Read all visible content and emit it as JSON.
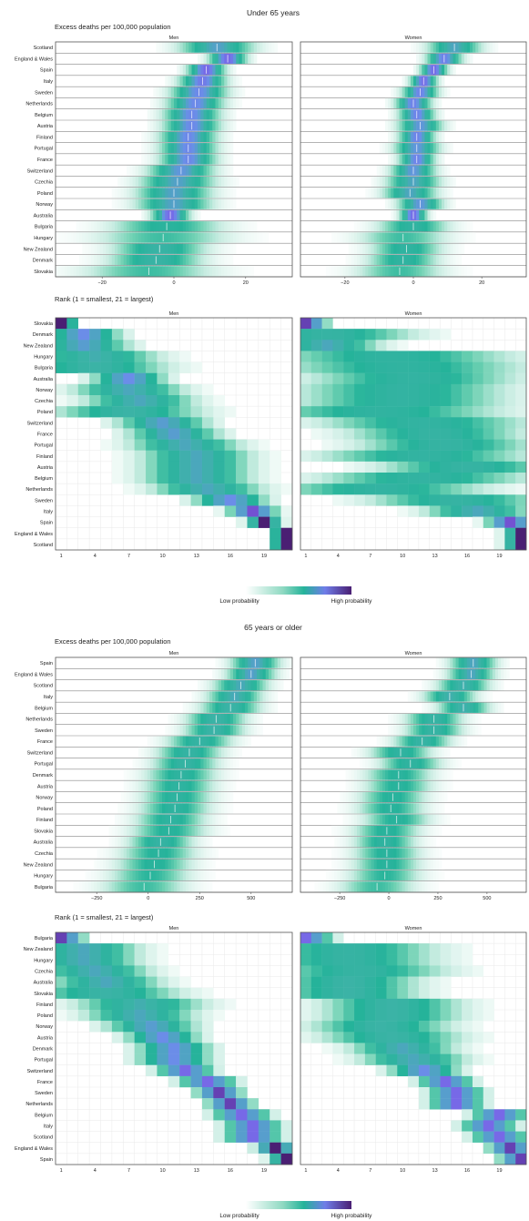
{
  "colors": {
    "gradient": [
      "#ffffff",
      "#c7ece1",
      "#6fd1b3",
      "#25b39a",
      "#3bb3a6",
      "#6a8fe8",
      "#7b5ce6",
      "#4a1f73"
    ],
    "panel_border": "#555555",
    "grid": "#e9e9e9"
  },
  "legend_labels": {
    "low": "Low probability",
    "high": "High probability"
  },
  "chart_data": [
    {
      "section_title": "Under 65 years",
      "type": "heatmap",
      "subtitle": "Excess deaths per 100,000 population",
      "facets": [
        "Men",
        "Women"
      ],
      "x_ticks": [
        -20,
        0,
        20
      ],
      "xlim": [
        -33,
        33
      ],
      "countries": [
        "Scotland",
        "England & Wales",
        "Spain",
        "Italy",
        "Sweden",
        "Netherlands",
        "Belgium",
        "Austria",
        "Finland",
        "Portugal",
        "France",
        "Switzerland",
        "Czechia",
        "Poland",
        "Norway",
        "Australia",
        "Bulgaria",
        "Hungary",
        "New Zealand",
        "Denmark",
        "Slovakia"
      ],
      "men_median": [
        12,
        15,
        9,
        8,
        7,
        6,
        5,
        5,
        4,
        4,
        4,
        2,
        1,
        0,
        0,
        -1,
        -2,
        -3,
        -4,
        -5,
        -7
      ],
      "men_spread": [
        4,
        2,
        2,
        2.5,
        3,
        3,
        3,
        3,
        3,
        3,
        3,
        3.5,
        4,
        4,
        4,
        2,
        6,
        7,
        5,
        5,
        7
      ],
      "women_median": [
        12,
        9,
        6,
        3,
        2,
        0,
        1,
        2,
        1,
        1,
        1,
        0,
        0,
        -1,
        2,
        0,
        0,
        -3,
        -2,
        -3,
        -4
      ],
      "women_spread": [
        3,
        2,
        1.5,
        1.5,
        2,
        2,
        2,
        2.5,
        2,
        2.5,
        2,
        2.5,
        3,
        3,
        2.5,
        1.5,
        4,
        5,
        4,
        4,
        5
      ],
      "rank_subtitle": "Rank (1 = smallest, 21 = largest)",
      "rank_ticks": [
        1,
        4,
        7,
        10,
        13,
        16,
        19
      ],
      "rank_countries": [
        "Slovakia",
        "Denmark",
        "New Zealand",
        "Hungary",
        "Bulgaria",
        "Australia",
        "Norway",
        "Czechia",
        "Poland",
        "Switzerland",
        "France",
        "Portugal",
        "Finland",
        "Austria",
        "Belgium",
        "Netherlands",
        "Sweden",
        "Italy",
        "Spain",
        "England & Wales",
        "Scotland"
      ],
      "men_rank_center": [
        1,
        3,
        3,
        4,
        4,
        7,
        7,
        8,
        7,
        10,
        11,
        12,
        13,
        13,
        13,
        14,
        16,
        18,
        19,
        21,
        21
      ],
      "men_rank_spread": [
        0.8,
        2,
        2.5,
        3.5,
        4,
        2,
        3,
        3,
        4,
        2.5,
        2.5,
        3,
        3,
        3,
        3,
        3,
        2,
        1.3,
        0.9,
        0.8,
        0.8
      ],
      "women_rank_center": [
        1,
        3,
        3,
        9,
        10,
        11,
        10,
        10,
        8,
        12,
        13,
        14,
        12,
        16,
        12,
        8,
        15,
        17,
        20,
        21,
        21
      ],
      "women_rank_spread": [
        1.2,
        5,
        3,
        7,
        7,
        6,
        6,
        6,
        7,
        6,
        5,
        5,
        6,
        5,
        6,
        6,
        5,
        3,
        1.3,
        0.9,
        0.9
      ]
    },
    {
      "section_title": "65 years or older",
      "type": "heatmap",
      "subtitle": "Excess deaths per 100,000 population",
      "facets": [
        "Men",
        "Women"
      ],
      "x_ticks": [
        -250,
        0,
        250,
        500
      ],
      "xlim": [
        -450,
        700
      ],
      "countries": [
        "Spain",
        "England & Wales",
        "Scotland",
        "Italy",
        "Belgium",
        "Netherlands",
        "Sweden",
        "France",
        "Switzerland",
        "Portugal",
        "Denmark",
        "Austria",
        "Norway",
        "Poland",
        "Finland",
        "Slovakia",
        "Australia",
        "Czechia",
        "New Zealand",
        "Hungary",
        "Bulgaria"
      ],
      "men_median": [
        520,
        500,
        450,
        420,
        400,
        330,
        320,
        250,
        200,
        180,
        160,
        150,
        140,
        130,
        110,
        100,
        60,
        50,
        30,
        10,
        -20
      ],
      "men_spread": [
        45,
        45,
        50,
        50,
        55,
        55,
        55,
        60,
        60,
        60,
        65,
        65,
        65,
        65,
        65,
        70,
        60,
        70,
        70,
        75,
        80
      ],
      "women_median": [
        430,
        420,
        380,
        310,
        380,
        230,
        230,
        170,
        60,
        110,
        50,
        50,
        20,
        10,
        40,
        -10,
        -20,
        -10,
        -10,
        -20,
        -60
      ],
      "women_spread": [
        45,
        45,
        50,
        50,
        50,
        55,
        55,
        55,
        60,
        60,
        65,
        65,
        65,
        65,
        65,
        65,
        60,
        65,
        65,
        70,
        75
      ],
      "rank_subtitle": "Rank (1 = smallest, 21 = largest)",
      "rank_ticks": [
        1,
        4,
        7,
        10,
        13,
        16,
        19
      ],
      "rank_countries": [
        "Bulgaria",
        "New Zealand",
        "Hungary",
        "Czechia",
        "Australia",
        "Slovakia",
        "Finland",
        "Poland",
        "Norway",
        "Austria",
        "Denmark",
        "Portugal",
        "Switzerland",
        "France",
        "Sweden",
        "Netherlands",
        "Belgium",
        "Italy",
        "Scotland",
        "England & Wales",
        "Spain"
      ],
      "men_rank_center": [
        1,
        3,
        3,
        4,
        5,
        5,
        8,
        8,
        9,
        10,
        11,
        11,
        12,
        14,
        15,
        16,
        17,
        18,
        18,
        20,
        21
      ],
      "men_rank_spread": [
        1.2,
        3,
        3,
        3,
        3,
        4,
        3.5,
        3,
        2.5,
        2,
        2,
        2,
        1.5,
        1.5,
        1.2,
        1.2,
        1.5,
        1.5,
        1.5,
        1,
        0.9
      ],
      "women_rank_center": [
        1,
        5,
        5,
        6,
        5,
        5,
        9,
        9,
        8,
        9,
        10,
        11,
        12,
        14,
        15,
        15,
        19,
        18,
        19,
        20,
        21
      ],
      "women_rank_spread": [
        1.5,
        5,
        5,
        5,
        4,
        4,
        4,
        4,
        4,
        4,
        3,
        3,
        2,
        1.5,
        1.5,
        1.5,
        1.5,
        1.5,
        1.5,
        1.2,
        1.2
      ]
    }
  ]
}
